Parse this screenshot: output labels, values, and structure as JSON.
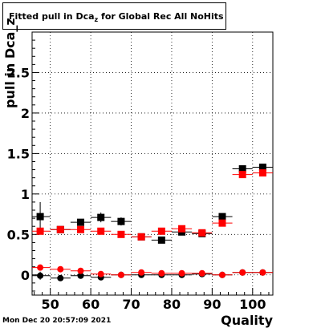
{
  "header": {
    "title_main": "Fitted pull in Dca",
    "title_sub": "z",
    "title_rest": " for Global Rec All NoHits"
  },
  "footer": {
    "timestamp": "Mon Dec 20 20:57:09 2021"
  },
  "chart_data": {
    "type": "scatter",
    "title": "Fitted pull in Dca_z for Global Rec All NoHits",
    "xlabel": "Quality",
    "ylabel": "pull in Dca_z",
    "xlim": [
      45.5,
      105
    ],
    "ylim": [
      -0.25,
      3.0
    ],
    "xticks": [
      50,
      60,
      70,
      80,
      90,
      100
    ],
    "yticks": [
      0,
      0.5,
      1,
      1.5,
      2,
      2.5
    ],
    "ytick_labels": [
      "0",
      "0.5",
      "1",
      "1.5",
      "2",
      "2.5"
    ],
    "grid": true,
    "bin_half_width": 2.5,
    "series": [
      {
        "marker": "square",
        "color": "#000000",
        "x": [
          47.5,
          52.5,
          57.5,
          62.5,
          67.5,
          72.5,
          77.5,
          82.5,
          87.5,
          92.5,
          97.5,
          102.5
        ],
        "y": [
          0.72,
          0.56,
          0.65,
          0.71,
          0.66,
          0.47,
          0.43,
          0.53,
          0.51,
          0.72,
          1.31,
          1.33
        ],
        "yerr": [
          0.18,
          0.04,
          0.04,
          0.06,
          0.05,
          0.03,
          0.03,
          0.02,
          0.02,
          0.03,
          0.02,
          0.02
        ]
      },
      {
        "marker": "square",
        "color": "#ff0000",
        "x": [
          47.5,
          52.5,
          57.5,
          62.5,
          67.5,
          72.5,
          77.5,
          82.5,
          87.5,
          92.5,
          97.5,
          102.5
        ],
        "y": [
          0.54,
          0.56,
          0.56,
          0.54,
          0.5,
          0.47,
          0.54,
          0.57,
          0.52,
          0.64,
          1.24,
          1.26
        ],
        "yerr": [
          0.04,
          0.03,
          0.03,
          0.03,
          0.03,
          0.02,
          0.02,
          0.02,
          0.02,
          0.02,
          0.02,
          0.02
        ]
      },
      {
        "marker": "circle",
        "color": "#000000",
        "x": [
          47.5,
          52.5,
          57.5,
          62.5,
          67.5,
          72.5,
          77.5,
          82.5,
          87.5,
          92.5,
          97.5,
          102.5
        ],
        "y": [
          -0.01,
          -0.04,
          -0.01,
          -0.03,
          0.0,
          0.0,
          0.0,
          0.0,
          0.01,
          0.0,
          0.03,
          0.03
        ],
        "yerr": [
          0.05,
          0.03,
          0.02,
          0.02,
          0.02,
          0.01,
          0.01,
          0.01,
          0.01,
          0.01,
          0.01,
          0.01
        ]
      },
      {
        "marker": "circle",
        "color": "#ff0000",
        "x": [
          47.5,
          52.5,
          57.5,
          62.5,
          67.5,
          72.5,
          77.5,
          82.5,
          87.5,
          92.5,
          97.5,
          102.5
        ],
        "y": [
          0.09,
          0.07,
          0.05,
          0.01,
          0.0,
          0.03,
          0.02,
          0.02,
          0.02,
          0.0,
          0.03,
          0.03
        ],
        "yerr": [
          0.02,
          0.02,
          0.02,
          0.02,
          0.01,
          0.01,
          0.01,
          0.01,
          0.01,
          0.01,
          0.01,
          0.01
        ]
      }
    ]
  }
}
